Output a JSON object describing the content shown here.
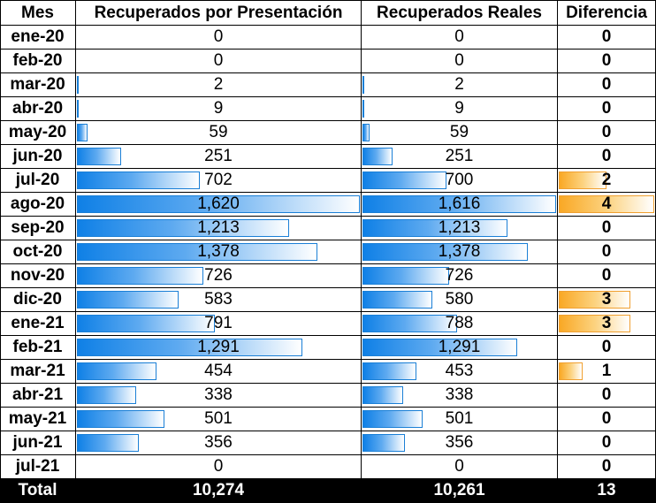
{
  "table": {
    "headers": {
      "mes": "Mes",
      "presentacion": "Recuperados por Presentación",
      "reales": "Recuperados Reales",
      "diferencia": "Diferencia"
    },
    "rows": [
      {
        "mes": "ene-20",
        "presentacion": "0",
        "reales": "0",
        "diferencia": "0"
      },
      {
        "mes": "feb-20",
        "presentacion": "0",
        "reales": "0",
        "diferencia": "0"
      },
      {
        "mes": "mar-20",
        "presentacion": "2",
        "reales": "2",
        "diferencia": "0"
      },
      {
        "mes": "abr-20",
        "presentacion": "9",
        "reales": "9",
        "diferencia": "0"
      },
      {
        "mes": "may-20",
        "presentacion": "59",
        "reales": "59",
        "diferencia": "0"
      },
      {
        "mes": "jun-20",
        "presentacion": "251",
        "reales": "251",
        "diferencia": "0"
      },
      {
        "mes": "jul-20",
        "presentacion": "702",
        "reales": "700",
        "diferencia": "2"
      },
      {
        "mes": "ago-20",
        "presentacion": "1,620",
        "reales": "1,616",
        "diferencia": "4"
      },
      {
        "mes": "sep-20",
        "presentacion": "1,213",
        "reales": "1,213",
        "diferencia": "0"
      },
      {
        "mes": "oct-20",
        "presentacion": "1,378",
        "reales": "1,378",
        "diferencia": "0"
      },
      {
        "mes": "nov-20",
        "presentacion": "726",
        "reales": "726",
        "diferencia": "0"
      },
      {
        "mes": "dic-20",
        "presentacion": "583",
        "reales": "580",
        "diferencia": "3"
      },
      {
        "mes": "ene-21",
        "presentacion": "791",
        "reales": "788",
        "diferencia": "3"
      },
      {
        "mes": "feb-21",
        "presentacion": "1,291",
        "reales": "1,291",
        "diferencia": "0"
      },
      {
        "mes": "mar-21",
        "presentacion": "454",
        "reales": "453",
        "diferencia": "1"
      },
      {
        "mes": "abr-21",
        "presentacion": "338",
        "reales": "338",
        "diferencia": "0"
      },
      {
        "mes": "may-21",
        "presentacion": "501",
        "reales": "501",
        "diferencia": "0"
      },
      {
        "mes": "jun-21",
        "presentacion": "356",
        "reales": "356",
        "diferencia": "0"
      },
      {
        "mes": "jul-21",
        "presentacion": "0",
        "reales": "0",
        "diferencia": "0"
      }
    ],
    "total": {
      "label": "Total",
      "presentacion": "10,274",
      "reales": "10,261",
      "diferencia": "13"
    },
    "data_bars": {
      "blue_color": "#0f80e6",
      "orange_color": "#f9a825",
      "presentacion_max": 1620,
      "reales_max": 1616,
      "diferencia_max": 4
    }
  }
}
